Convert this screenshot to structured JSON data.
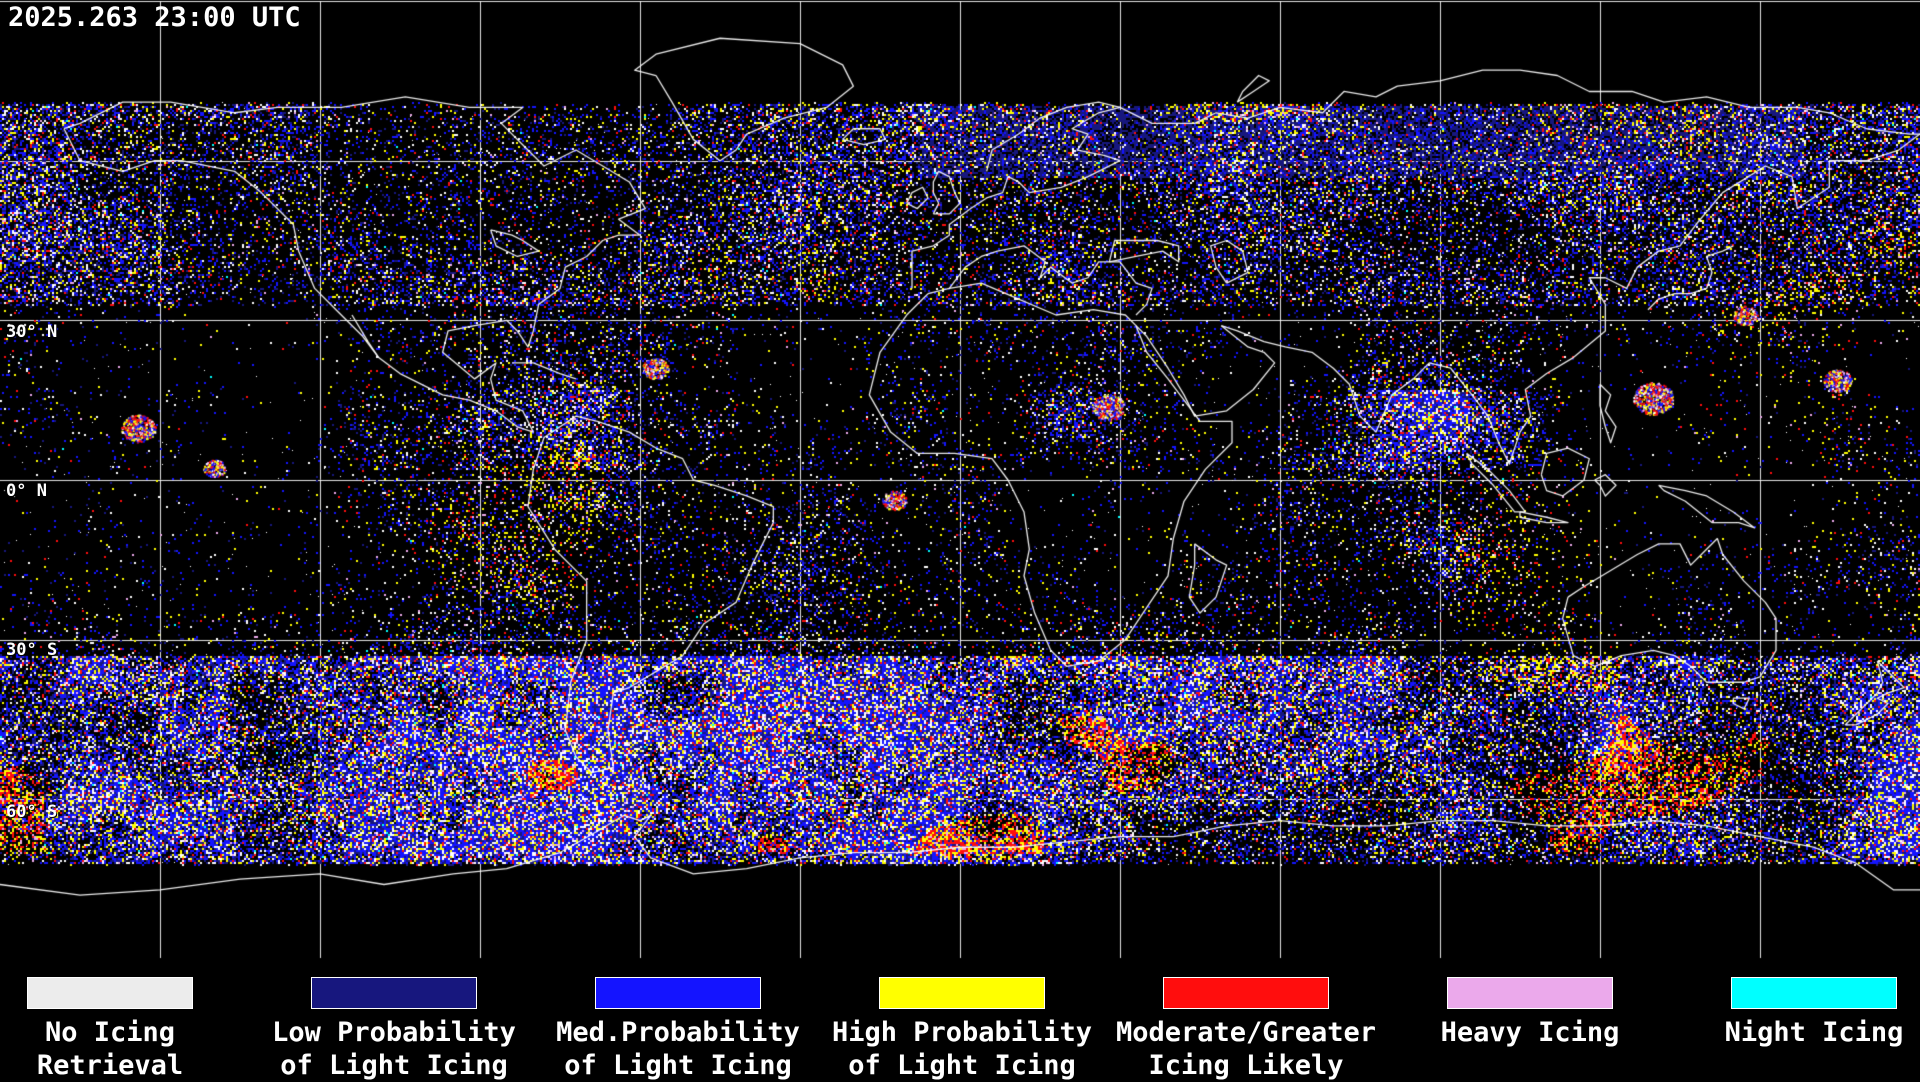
{
  "header": {
    "timestamp": "2025.263 23:00 UTC"
  },
  "map": {
    "projection": "equirectangular",
    "background_color": "#000000",
    "grid_color": "#ffffff",
    "coastline_color": "#ffffff",
    "grid_spacing_deg": 30,
    "latitude_labels": [
      {
        "text": "30° N"
      },
      {
        "text": "0° N"
      },
      {
        "text": "30° S"
      },
      {
        "text": "60° S"
      }
    ]
  },
  "legend": {
    "items": [
      {
        "id": "no-icing-retrieval",
        "color": "#ececec",
        "line1": "No Icing",
        "line2": "Retrieval"
      },
      {
        "id": "low-probability-light-icing",
        "color": "#17177e",
        "line1": "Low Probability",
        "line2": "of Light Icing"
      },
      {
        "id": "med-probability-light-icing",
        "color": "#1414ff",
        "line1": "Med.Probability",
        "line2": "of Light Icing"
      },
      {
        "id": "high-probability-light-icing",
        "color": "#ffff00",
        "line1": "High Probability",
        "line2": "of Light Icing"
      },
      {
        "id": "moderate-greater-icing-likely",
        "color": "#ff0d0d",
        "line1": "Moderate/Greater",
        "line2": "Icing Likely"
      },
      {
        "id": "heavy-icing",
        "color": "#eba9eb",
        "line1": "Heavy Icing",
        "line2": ""
      },
      {
        "id": "night-icing",
        "color": "#00ffff",
        "line1": "Night Icing",
        "line2": ""
      }
    ]
  }
}
